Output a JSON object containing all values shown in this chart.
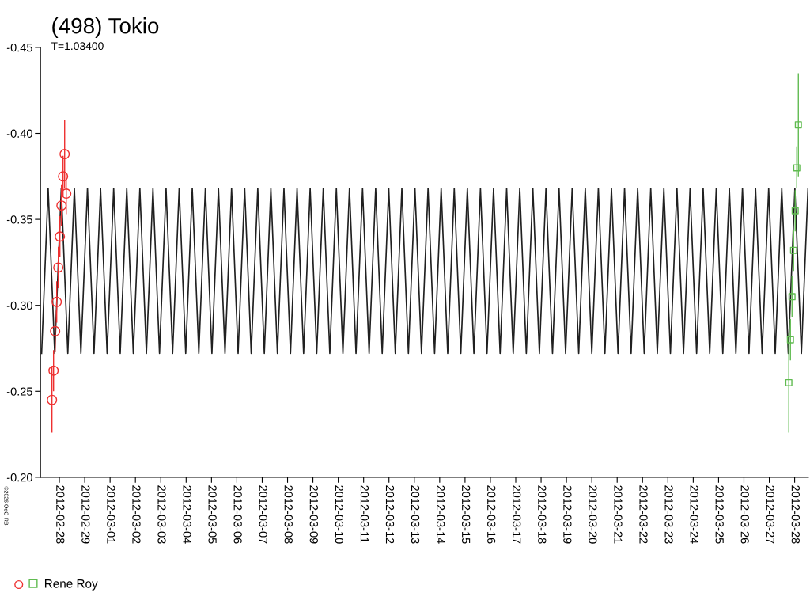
{
  "chart_data": {
    "type": "line",
    "title": "(498) Tokio",
    "subtitle": "T=1.03400",
    "annotations": [
      "©2026 OdG-RB"
    ],
    "xlim": [
      "2012-02-27T06:09",
      "2012-03-28T13:00"
    ],
    "xticks": [
      "2012-02-28",
      "2012-02-29",
      "2012-03-01",
      "2012-03-02",
      "2012-03-03",
      "2012-03-04",
      "2012-03-05",
      "2012-03-06",
      "2012-03-07",
      "2012-03-08",
      "2012-03-09",
      "2012-03-10",
      "2012-03-11",
      "2012-03-12",
      "2012-03-13",
      "2012-03-14",
      "2012-03-15",
      "2012-03-16",
      "2012-03-17",
      "2012-03-18",
      "2012-03-19",
      "2012-03-20",
      "2012-03-21",
      "2012-03-22",
      "2012-03-23",
      "2012-03-24",
      "2012-03-25",
      "2012-03-26",
      "2012-03-27",
      "2012-03-28"
    ],
    "ylim": [
      -0.2,
      -0.45
    ],
    "yticks": [
      {
        "value": -0.45,
        "label": "-0.45"
      },
      {
        "value": -0.4,
        "label": "-0.40"
      },
      {
        "value": -0.35,
        "label": "-0.35"
      },
      {
        "value": -0.3,
        "label": "-0.30"
      },
      {
        "value": -0.25,
        "label": "-0.25"
      },
      {
        "value": -0.2,
        "label": "-0.20"
      }
    ],
    "grid": false,
    "legend": "bottom left",
    "series": [
      {
        "color": "#202020",
        "marker": "none",
        "line_style": "solid",
        "x": [
          "2012-02-27T07:12",
          "2012-02-27T13:24",
          "2012-02-27T19:36",
          "2012-02-28T01:48",
          "2012-02-28T08:00",
          "2012-02-28T14:12",
          "2012-02-28T20:24",
          "2012-02-29T02:36",
          "2012-02-29T08:48",
          "2012-02-29T15:00",
          "2012-02-29T21:12",
          "2012-03-01T03:24",
          "2012-03-01T09:36",
          "2012-03-01T15:48",
          "2012-03-01T22:00",
          "2012-03-02T04:12",
          "2012-03-02T10:24",
          "2012-03-02T16:36",
          "2012-03-02T22:48",
          "2012-03-03T05:00",
          "2012-03-03T11:12",
          "2012-03-03T17:24",
          "2012-03-03T23:36",
          "2012-03-04T05:48",
          "2012-03-04T12:00",
          "2012-03-04T18:12",
          "2012-03-05T00:24",
          "2012-03-05T06:36",
          "2012-03-05T12:48",
          "2012-03-05T19:00",
          "2012-03-06T01:12",
          "2012-03-06T07:24",
          "2012-03-06T13:36",
          "2012-03-06T19:48",
          "2012-03-07T02:00",
          "2012-03-07T08:12",
          "2012-03-07T14:24",
          "2012-03-07T20:36",
          "2012-03-08T02:48",
          "2012-03-08T09:00",
          "2012-03-08T15:12",
          "2012-03-08T21:24",
          "2012-03-09T03:36",
          "2012-03-09T09:48",
          "2012-03-09T16:00",
          "2012-03-09T22:12",
          "2012-03-10T04:24",
          "2012-03-10T10:36",
          "2012-03-10T16:48",
          "2012-03-10T23:00",
          "2012-03-11T05:12",
          "2012-03-11T11:24",
          "2012-03-11T17:36",
          "2012-03-11T23:48",
          "2012-03-12T06:00",
          "2012-03-12T12:12",
          "2012-03-12T18:24",
          "2012-03-13T00:36",
          "2012-03-13T06:48",
          "2012-03-13T13:00",
          "2012-03-13T19:12",
          "2012-03-14T01:24",
          "2012-03-14T07:36",
          "2012-03-14T13:48",
          "2012-03-14T20:00",
          "2012-03-15T02:12",
          "2012-03-15T08:24",
          "2012-03-15T14:36",
          "2012-03-15T20:48",
          "2012-03-16T03:00",
          "2012-03-16T09:12",
          "2012-03-16T15:24",
          "2012-03-16T21:36",
          "2012-03-17T03:48",
          "2012-03-17T10:00",
          "2012-03-17T16:12",
          "2012-03-17T22:24",
          "2012-03-18T04:36",
          "2012-03-18T10:48",
          "2012-03-18T17:00",
          "2012-03-18T23:12",
          "2012-03-19T05:24",
          "2012-03-19T11:36",
          "2012-03-19T17:48",
          "2012-03-20T00:00",
          "2012-03-20T06:12",
          "2012-03-20T12:24",
          "2012-03-20T18:36",
          "2012-03-21T00:48",
          "2012-03-21T07:00",
          "2012-03-21T13:12",
          "2012-03-21T19:24",
          "2012-03-22T01:36",
          "2012-03-22T07:48",
          "2012-03-22T14:00",
          "2012-03-22T20:12",
          "2012-03-23T02:24",
          "2012-03-23T08:36",
          "2012-03-23T14:48",
          "2012-03-23T21:00",
          "2012-03-24T03:12",
          "2012-03-24T09:24",
          "2012-03-24T15:36",
          "2012-03-24T21:48",
          "2012-03-25T04:00",
          "2012-03-25T10:12",
          "2012-03-25T16:24",
          "2012-03-25T22:36",
          "2012-03-26T04:48",
          "2012-03-26T11:00",
          "2012-03-26T17:12",
          "2012-03-26T23:24",
          "2012-03-27T05:36",
          "2012-03-27T11:48",
          "2012-03-27T18:00",
          "2012-03-28T00:12",
          "2012-03-28T06:24",
          "2012-03-28T12:36"
        ],
        "values": [
          -0.272,
          -0.368,
          -0.272,
          -0.368,
          -0.272,
          -0.368,
          -0.272,
          -0.368,
          -0.272,
          -0.368,
          -0.272,
          -0.368,
          -0.272,
          -0.368,
          -0.272,
          -0.368,
          -0.272,
          -0.368,
          -0.272,
          -0.368,
          -0.272,
          -0.368,
          -0.272,
          -0.368,
          -0.272,
          -0.368,
          -0.272,
          -0.368,
          -0.272,
          -0.368,
          -0.272,
          -0.368,
          -0.272,
          -0.368,
          -0.272,
          -0.368,
          -0.272,
          -0.368,
          -0.272,
          -0.368,
          -0.272,
          -0.368,
          -0.272,
          -0.368,
          -0.272,
          -0.368,
          -0.272,
          -0.368,
          -0.272,
          -0.368,
          -0.272,
          -0.368,
          -0.272,
          -0.368,
          -0.272,
          -0.368,
          -0.272,
          -0.368,
          -0.272,
          -0.368,
          -0.272,
          -0.368,
          -0.272,
          -0.368,
          -0.272,
          -0.368,
          -0.272,
          -0.368,
          -0.272,
          -0.368,
          -0.272,
          -0.368,
          -0.272,
          -0.368,
          -0.272,
          -0.368,
          -0.272,
          -0.368,
          -0.272,
          -0.368,
          -0.272,
          -0.368,
          -0.272,
          -0.368,
          -0.272,
          -0.368,
          -0.272,
          -0.368,
          -0.272,
          -0.368,
          -0.272,
          -0.368,
          -0.272,
          -0.368,
          -0.272,
          -0.368,
          -0.272,
          -0.368,
          -0.272,
          -0.368,
          -0.272,
          -0.368,
          -0.272,
          -0.368,
          -0.272,
          -0.368,
          -0.272,
          -0.368,
          -0.272,
          -0.368,
          -0.272,
          -0.368,
          -0.272,
          -0.368,
          -0.272,
          -0.368,
          -0.272,
          -0.368
        ]
      },
      {
        "type": "scatter",
        "color": "#ee3030",
        "marker": "circle",
        "x": [
          "2012-02-27T17:00",
          "2012-02-27T18:30",
          "2012-02-27T20:00",
          "2012-02-27T21:30",
          "2012-02-27T23:00",
          "2012-02-28T00:30",
          "2012-02-28T02:00",
          "2012-02-28T03:30",
          "2012-02-28T05:00",
          "2012-02-28T06:30"
        ],
        "values": [
          -0.245,
          -0.262,
          -0.285,
          -0.302,
          -0.322,
          -0.34,
          -0.358,
          -0.375,
          -0.388,
          -0.365
        ],
        "errors": [
          0.019,
          0.012,
          0.012,
          0.012,
          0.012,
          0.012,
          0.012,
          0.012,
          0.02,
          0.012
        ]
      },
      {
        "type": "scatter",
        "name": "Rene Roy",
        "color": "#60bb50",
        "marker": "square",
        "x": [
          "2012-03-27T18:30",
          "2012-03-27T20:00",
          "2012-03-27T21:30",
          "2012-03-27T23:00",
          "2012-03-28T00:30",
          "2012-03-28T02:00",
          "2012-03-28T03:30"
        ],
        "values": [
          -0.255,
          -0.28,
          -0.305,
          -0.332,
          -0.355,
          -0.38,
          -0.405
        ],
        "errors": [
          0.029,
          0.012,
          0.012,
          0.012,
          0.012,
          0.012,
          0.03
        ]
      }
    ]
  }
}
